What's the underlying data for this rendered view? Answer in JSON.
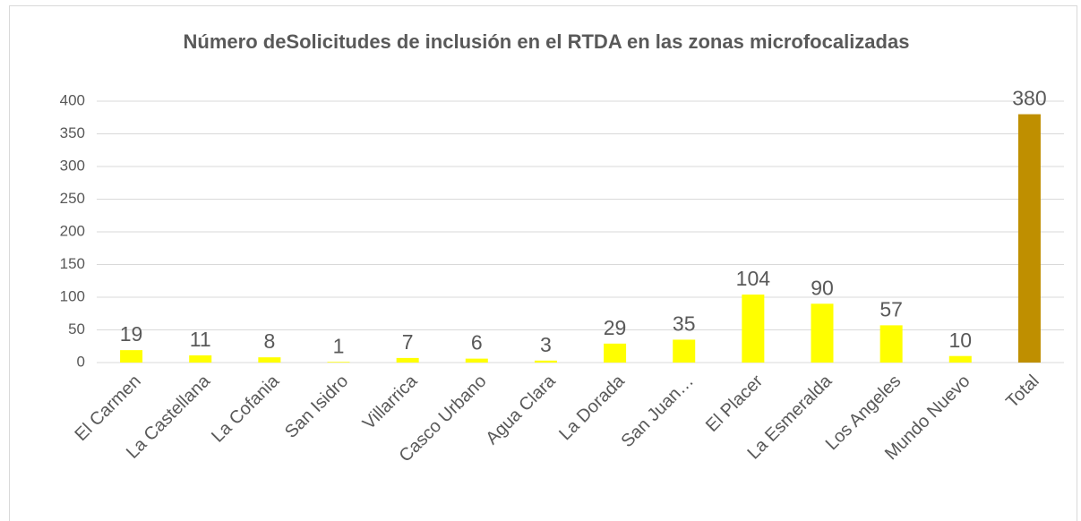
{
  "chart_data": {
    "type": "bar",
    "title": "Número deSolicitudes de inclusión en el RTDA en las zonas microfocalizadas",
    "categories": [
      "El Carmen",
      "La Castellana",
      "La Cofania",
      "San Isidro",
      "Villarrica",
      "Casco Urbano",
      "Agua Clara",
      "La Dorada",
      "San Juan…",
      "El Placer",
      "La Esmeralda",
      "Los Angeles",
      "Mundo Nuevo",
      "Total"
    ],
    "values": [
      19,
      11,
      8,
      1,
      7,
      6,
      3,
      29,
      35,
      104,
      90,
      57,
      10,
      380
    ],
    "colors": [
      "#ffff00",
      "#ffff00",
      "#ffff00",
      "#ffff00",
      "#ffff00",
      "#ffff00",
      "#ffff00",
      "#ffff00",
      "#ffff00",
      "#ffff00",
      "#ffff00",
      "#ffff00",
      "#ffff00",
      "#bf8f00"
    ],
    "ylim": [
      0,
      400
    ],
    "yticks": [
      0,
      50,
      100,
      150,
      200,
      250,
      300,
      350,
      400
    ],
    "grid": true
  }
}
